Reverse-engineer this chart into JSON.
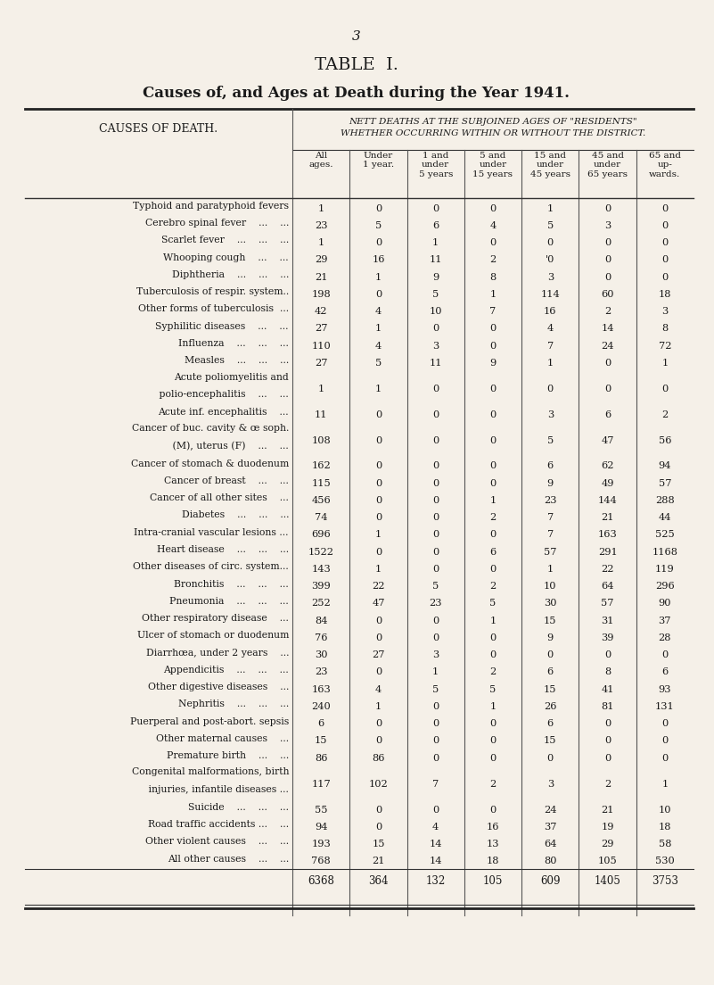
{
  "page_number": "3",
  "title": "TABLE  I.",
  "subtitle": "Causes of, and Ages at Death during the Year 1941.",
  "header1": "NETT DEATHS AT THE SUBJOINED AGES OF \"RESIDENTS\"",
  "header2": "WHETHER OCCURRING WITHIN OR WITHOUT THE DISTRICT.",
  "col_headers": [
    "All\nages.",
    "Under\n1 year.",
    "1 and\nunder\n5 years",
    "5 and\nunder\n15 years",
    "15 and\nunder\n45 years",
    "45 and\nunder\n65 years",
    "65 and\nup-\nwards."
  ],
  "left_header": "CAUSES OF DEATH.",
  "rows": [
    {
      "cause": "Typhoid and paratyphoid fevers",
      "values": [
        1,
        0,
        0,
        0,
        1,
        0,
        0
      ],
      "two_line": false
    },
    {
      "cause": "Cerebro spinal fever    ...    ...",
      "values": [
        23,
        5,
        6,
        4,
        5,
        3,
        0
      ],
      "two_line": false
    },
    {
      "cause": "Scarlet fever    ...    ...    ...",
      "values": [
        1,
        0,
        1,
        0,
        0,
        0,
        0
      ],
      "two_line": false
    },
    {
      "cause": "Whooping cough    ...    ...",
      "values": [
        29,
        16,
        11,
        2,
        0,
        0,
        0
      ],
      "two_line": false,
      "special_col4": "'0"
    },
    {
      "cause": "Diphtheria    ...    ...    ...",
      "values": [
        21,
        1,
        9,
        8,
        3,
        0,
        0
      ],
      "two_line": false
    },
    {
      "cause": "Tuberculosis of respir. system..",
      "values": [
        198,
        0,
        5,
        1,
        114,
        60,
        18
      ],
      "two_line": false
    },
    {
      "cause": "Other forms of tuberculosis  ...",
      "values": [
        42,
        4,
        10,
        7,
        16,
        2,
        3
      ],
      "two_line": false
    },
    {
      "cause": "Syphilitic diseases    ...    ...",
      "values": [
        27,
        1,
        0,
        0,
        4,
        14,
        8
      ],
      "two_line": false
    },
    {
      "cause": "Influenza    ...    ...    ...",
      "values": [
        110,
        4,
        3,
        0,
        7,
        24,
        72
      ],
      "two_line": false
    },
    {
      "cause": "Measles    ...    ...    ...",
      "values": [
        27,
        5,
        11,
        9,
        1,
        0,
        1
      ],
      "two_line": false
    },
    {
      "cause": "Acute poliomyelitis and",
      "cause2": "   polio-encephalitis    ...    ...",
      "values": [
        1,
        1,
        0,
        0,
        0,
        0,
        0
      ],
      "two_line": true
    },
    {
      "cause": "Acute inf. encephalitis    ...",
      "values": [
        11,
        0,
        0,
        0,
        3,
        6,
        2
      ],
      "two_line": false
    },
    {
      "cause": "Cancer of buc. cavity & œ soph.",
      "cause2": "   (M), uterus (F)    ...    ...",
      "values": [
        108,
        0,
        0,
        0,
        5,
        47,
        56
      ],
      "two_line": true
    },
    {
      "cause": "Cancer of stomach & duodenum",
      "values": [
        162,
        0,
        0,
        0,
        6,
        62,
        94
      ],
      "two_line": false
    },
    {
      "cause": "Cancer of breast    ...    ...",
      "values": [
        115,
        0,
        0,
        0,
        9,
        49,
        57
      ],
      "two_line": false
    },
    {
      "cause": "Cancer of all other sites    ...",
      "values": [
        456,
        0,
        0,
        1,
        23,
        144,
        288
      ],
      "two_line": false
    },
    {
      "cause": "Diabetes    ...    ...    ...",
      "values": [
        74,
        0,
        0,
        2,
        7,
        21,
        44
      ],
      "two_line": false
    },
    {
      "cause": "Intra-cranial vascular lesions ...",
      "values": [
        696,
        1,
        0,
        0,
        7,
        163,
        525
      ],
      "two_line": false
    },
    {
      "cause": "Heart disease    ...    ...    ...",
      "values": [
        1522,
        0,
        0,
        6,
        57,
        291,
        1168
      ],
      "two_line": false
    },
    {
      "cause": "Other diseases of circ. system...",
      "values": [
        143,
        1,
        0,
        0,
        1,
        22,
        119
      ],
      "two_line": false
    },
    {
      "cause": "Bronchitis    ...    ...    ...",
      "values": [
        399,
        22,
        5,
        2,
        10,
        64,
        296
      ],
      "two_line": false
    },
    {
      "cause": "Pneumonia    ...    ...    ...",
      "values": [
        252,
        47,
        23,
        5,
        30,
        57,
        90
      ],
      "two_line": false
    },
    {
      "cause": "Other respiratory disease    ...",
      "values": [
        84,
        0,
        0,
        1,
        15,
        31,
        37
      ],
      "two_line": false
    },
    {
      "cause": "Ulcer of stomach or duodenum",
      "values": [
        76,
        0,
        0,
        0,
        9,
        39,
        28
      ],
      "two_line": false
    },
    {
      "cause": "Diarrhœa, under 2 years    ...",
      "values": [
        30,
        27,
        3,
        0,
        0,
        0,
        0
      ],
      "two_line": false
    },
    {
      "cause": "Appendicitis    ...    ...    ...",
      "values": [
        23,
        0,
        1,
        2,
        6,
        8,
        6
      ],
      "two_line": false
    },
    {
      "cause": "Other digestive diseases    ...",
      "values": [
        163,
        4,
        5,
        5,
        15,
        41,
        93
      ],
      "two_line": false
    },
    {
      "cause": "Nephritis    ...    ...    ...",
      "values": [
        240,
        1,
        0,
        1,
        26,
        81,
        131
      ],
      "two_line": false
    },
    {
      "cause": "Puerperal and post-abort. sepsis",
      "values": [
        6,
        0,
        0,
        0,
        6,
        0,
        0
      ],
      "two_line": false
    },
    {
      "cause": "Other maternal causes    ...",
      "values": [
        15,
        0,
        0,
        0,
        15,
        0,
        0
      ],
      "two_line": false
    },
    {
      "cause": "Premature birth    ...    ...",
      "values": [
        86,
        86,
        0,
        0,
        0,
        0,
        0
      ],
      "two_line": false
    },
    {
      "cause": "Congenital malformations, birth",
      "cause2": "   injuries, infantile diseases ...",
      "values": [
        117,
        102,
        7,
        2,
        3,
        2,
        1
      ],
      "two_line": true
    },
    {
      "cause": "Suicide    ...    ...    ...",
      "values": [
        55,
        0,
        0,
        0,
        24,
        21,
        10
      ],
      "two_line": false
    },
    {
      "cause": "Road traffic accidents ...    ...",
      "values": [
        94,
        0,
        4,
        16,
        37,
        19,
        18
      ],
      "two_line": false
    },
    {
      "cause": "Other violent causes    ...    ...",
      "values": [
        193,
        15,
        14,
        13,
        64,
        29,
        58
      ],
      "two_line": false
    },
    {
      "cause": "All other causes    ...    ...",
      "values": [
        768,
        21,
        14,
        18,
        80,
        105,
        530
      ],
      "two_line": false
    }
  ],
  "totals": [
    6368,
    364,
    132,
    105,
    609,
    1405,
    3753
  ],
  "background_color": "#f5f0e8",
  "text_color": "#1a1a1a"
}
